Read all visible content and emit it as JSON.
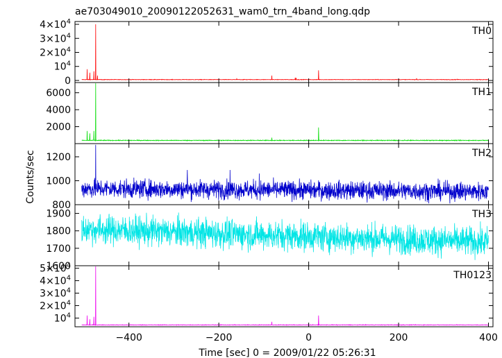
{
  "chart_data": {
    "type": "line",
    "title": "ae703049010_20090122052631_wam0_trn_4band_long.qdp",
    "xlabel": "Time [sec] 0 = 2009/01/22 05:26:31",
    "ylabel": "Counts/sec",
    "xlim": [
      -520,
      410
    ],
    "x_ticks": [
      {
        "value": -400,
        "label": "−400"
      },
      {
        "value": -200,
        "label": "−200"
      },
      {
        "value": 0,
        "label": "0"
      },
      {
        "value": 200,
        "label": "200"
      },
      {
        "value": 400,
        "label": "400"
      }
    ],
    "panels": [
      {
        "label": "TH0",
        "color": "#ff0000",
        "ylim": [
          -1500,
          42000
        ],
        "base": 600,
        "noise": 120,
        "trend": 0,
        "yticks": [
          {
            "value": 0,
            "label": "0",
            "sup": ""
          },
          {
            "value": 10000,
            "label": "10",
            "sup": "4"
          },
          {
            "value": 20000,
            "label": "2×10",
            "sup": "4"
          },
          {
            "value": 30000,
            "label": "3×10",
            "sup": "4"
          },
          {
            "value": 40000,
            "label": "4×10",
            "sup": "4"
          }
        ],
        "spikes": [
          [
            -493,
            8000
          ],
          [
            -487,
            5500
          ],
          [
            -478,
            6500
          ],
          [
            -474,
            40000
          ],
          [
            -470,
            3500
          ],
          [
            -160,
            1200
          ],
          [
            -82,
            3500
          ],
          [
            -30,
            2000
          ],
          [
            -28,
            1800
          ],
          [
            22,
            7200
          ],
          [
            240,
            1500
          ],
          [
            330,
            900
          ]
        ]
      },
      {
        "label": "TH1",
        "color": "#00dd00",
        "ylim": [
          0,
          7200
        ],
        "base": 380,
        "noise": 30,
        "trend": 0,
        "yticks": [
          {
            "value": 2000,
            "label": "2000",
            "sup": ""
          },
          {
            "value": 4000,
            "label": "4000",
            "sup": ""
          },
          {
            "value": 6000,
            "label": "6000",
            "sup": ""
          }
        ],
        "spikes": [
          [
            -493,
            1500
          ],
          [
            -487,
            1200
          ],
          [
            -478,
            1500
          ],
          [
            -474,
            7200
          ],
          [
            -82,
            700
          ],
          [
            22,
            1900
          ]
        ]
      },
      {
        "label": "TH2",
        "color": "#0000cc",
        "ylim": [
          800,
          1310
        ],
        "base": 935,
        "noise": 55,
        "trend": -25,
        "yticks": [
          {
            "value": 800,
            "label": "800",
            "sup": ""
          },
          {
            "value": 1000,
            "label": "1000",
            "sup": ""
          },
          {
            "value": 1200,
            "label": "1200",
            "sup": ""
          }
        ],
        "spikes": [
          [
            -474,
            1300
          ],
          [
            -270,
            1090
          ],
          [
            -175,
            1090
          ],
          [
            -110,
            1060
          ]
        ]
      },
      {
        "label": "TH3",
        "color": "#00e5e5",
        "ylim": [
          1600,
          1950
        ],
        "base": 1810,
        "noise": 60,
        "trend": -75,
        "yticks": [
          {
            "value": 1600,
            "label": "1600",
            "sup": ""
          },
          {
            "value": 1700,
            "label": "1700",
            "sup": ""
          },
          {
            "value": 1800,
            "label": "1800",
            "sup": ""
          },
          {
            "value": 1900,
            "label": "1900",
            "sup": ""
          }
        ],
        "spikes": []
      },
      {
        "label": "TH0123",
        "color": "#ee00ee",
        "ylim": [
          3000,
          52000
        ],
        "base": 4500,
        "noise": 150,
        "trend": 0,
        "yticks": [
          {
            "value": 10000,
            "label": "10",
            "sup": "4"
          },
          {
            "value": 20000,
            "label": "2×10",
            "sup": "4"
          },
          {
            "value": 30000,
            "label": "3×10",
            "sup": "4"
          },
          {
            "value": 40000,
            "label": "4×10",
            "sup": "4"
          },
          {
            "value": 50000,
            "label": "5×10",
            "sup": "4"
          }
        ],
        "spikes": [
          [
            -493,
            12000
          ],
          [
            -487,
            9000
          ],
          [
            -478,
            11000
          ],
          [
            -474,
            51500
          ],
          [
            -82,
            7000
          ],
          [
            22,
            12000
          ]
        ]
      }
    ]
  }
}
